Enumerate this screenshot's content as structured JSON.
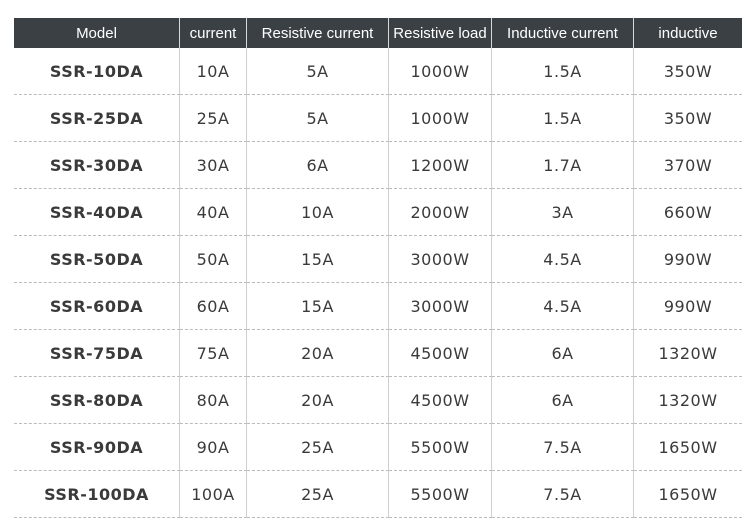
{
  "table": {
    "header": [
      "Model",
      "current",
      "Resistive current",
      "Resistive load",
      "Inductive current",
      "inductive"
    ],
    "rows": [
      [
        "SSR-10DA",
        "10A",
        "5A",
        "1000W",
        "1.5A",
        "350W"
      ],
      [
        "SSR-25DA",
        "25A",
        "5A",
        "1000W",
        "1.5A",
        "350W"
      ],
      [
        "SSR-30DA",
        "30A",
        "6A",
        "1200W",
        "1.7A",
        "370W"
      ],
      [
        "SSR-40DA",
        "40A",
        "10A",
        "2000W",
        "3A",
        "660W"
      ],
      [
        "SSR-50DA",
        "50A",
        "15A",
        "3000W",
        "4.5A",
        "990W"
      ],
      [
        "SSR-60DA",
        "60A",
        "15A",
        "3000W",
        "4.5A",
        "990W"
      ],
      [
        "SSR-75DA",
        "75A",
        "20A",
        "4500W",
        "6A",
        "1320W"
      ],
      [
        "SSR-80DA",
        "80A",
        "20A",
        "4500W",
        "6A",
        "1320W"
      ],
      [
        "SSR-90DA",
        "90A",
        "25A",
        "5500W",
        "7.5A",
        "1650W"
      ],
      [
        "SSR-100DA",
        "100A",
        "25A",
        "5500W",
        "7.5A",
        "1650W"
      ]
    ]
  }
}
